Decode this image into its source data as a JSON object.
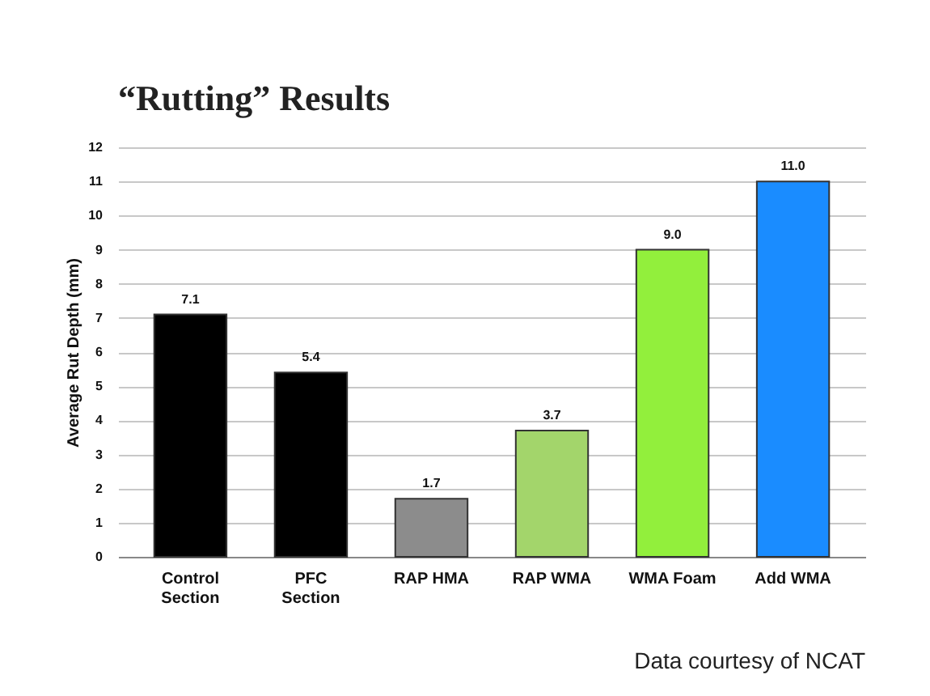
{
  "chart_data": {
    "type": "bar",
    "title": "“Rutting” Results",
    "ylabel": "Average Rut Depth (mm)",
    "categories": [
      "Control Section",
      "PFC Section",
      "RAP HMA",
      "RAP WMA",
      "WMA Foam",
      "Add WMA"
    ],
    "values": [
      7.1,
      5.4,
      1.7,
      3.7,
      9.0,
      11.0
    ],
    "colors": [
      "#000000",
      "#000000",
      "#8c8c8c",
      "#a3d56b",
      "#92ef3c",
      "#1a8cff"
    ],
    "value_labels": [
      "7.1",
      "5.4",
      "1.7",
      "3.7",
      "9.0",
      "11.0"
    ],
    "ylim": [
      0,
      12
    ],
    "yticks": [
      0,
      1,
      2,
      3,
      4,
      5,
      6,
      7,
      8,
      9,
      10,
      11,
      12
    ],
    "grid": "y",
    "annotations": [
      "Data courtesy of NCAT"
    ]
  }
}
